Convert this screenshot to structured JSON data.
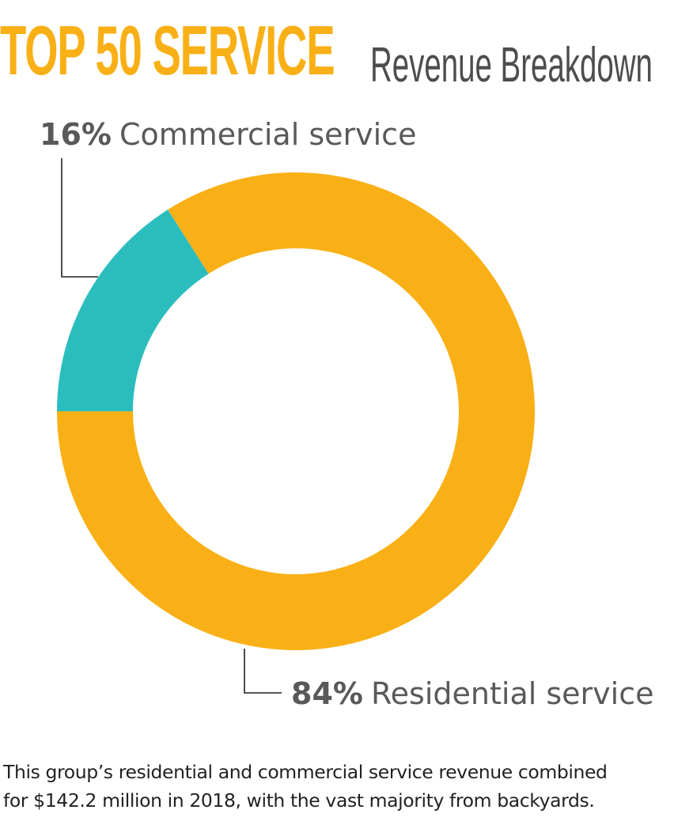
{
  "header": {
    "title": "TOP 50 SERVICE",
    "subtitle": "Revenue Breakdown"
  },
  "chart_data": {
    "type": "pie",
    "variant": "donut",
    "slices": [
      {
        "label": "Commercial service",
        "value": 16,
        "display": "16%",
        "color": "#2bbdbe"
      },
      {
        "label": "Residential service",
        "value": 84,
        "display": "84%",
        "color": "#f9b016"
      }
    ]
  },
  "caption": {
    "line1": "This group’s residential and commercial service revenue combined",
    "line2": "for $142.2 million in 2018, with the vast majority from backyards."
  },
  "colors": {
    "accent": "#f9b016",
    "teal": "#2bbdbe",
    "text": "#58595b"
  }
}
